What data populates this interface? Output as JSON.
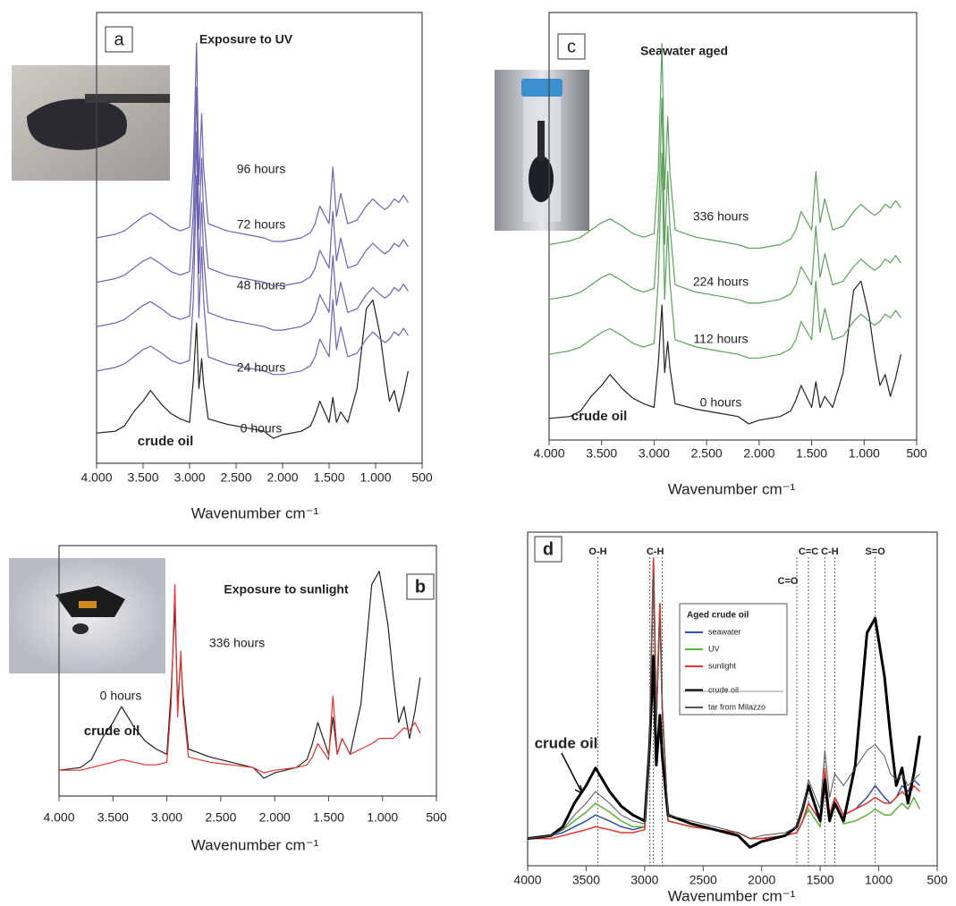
{
  "chart_data": [
    {
      "type": "line",
      "panel_label": "a",
      "title": "Exposure to UV",
      "xlabel": "Wavenumber cm⁻¹",
      "xlim": [
        4000,
        500
      ],
      "ylim": [
        0,
        240
      ],
      "xticks": [
        {
          "value": 4000,
          "label": "4.000"
        },
        {
          "value": 3500,
          "label": "3.500"
        },
        {
          "value": 3000,
          "label": "3.000"
        },
        {
          "value": 2500,
          "label": "2.500"
        },
        {
          "value": 2000,
          "label": "2.000"
        },
        {
          "value": 1500,
          "label": "1.500"
        },
        {
          "value": 1000,
          "label": "1.000"
        },
        500
      ],
      "x": [
        4000,
        3800,
        3700,
        3600,
        3500,
        3420,
        3300,
        3200,
        3100,
        3000,
        2960,
        2925,
        2900,
        2870,
        2850,
        2800,
        2600,
        2400,
        2200,
        2100,
        2000,
        1800,
        1700,
        1650,
        1600,
        1500,
        1460,
        1420,
        1375,
        1300,
        1200,
        1100,
        1030,
        950,
        900,
        850,
        800,
        750,
        700,
        650
      ],
      "annotations": [
        {
          "text": "crude oil"
        }
      ],
      "series": [
        {
          "name": "0 hours",
          "color": "#222222",
          "values": [
            10,
            11,
            14,
            22,
            28,
            34,
            26,
            21,
            18,
            16,
            40,
            72,
            35,
            52,
            38,
            18,
            15,
            13,
            11,
            7,
            9,
            11,
            14,
            20,
            28,
            16,
            30,
            16,
            22,
            16,
            35,
            80,
            85,
            65,
            45,
            28,
            34,
            22,
            32,
            45
          ]
        },
        {
          "name": "24 hours",
          "color": "#6a64b0",
          "values": [
            45,
            47,
            49,
            53,
            57,
            59,
            55,
            51,
            49,
            51,
            85,
            155,
            75,
            115,
            85,
            53,
            49,
            47,
            45,
            43,
            43,
            45,
            48,
            53,
            63,
            53,
            85,
            57,
            70,
            53,
            55,
            63,
            67,
            63,
            61,
            63,
            67,
            65,
            69,
            65
          ]
        },
        {
          "name": "48 hours",
          "color": "#6a64b0",
          "values": [
            70,
            72,
            74,
            78,
            82,
            84,
            80,
            76,
            74,
            76,
            110,
            180,
            100,
            140,
            110,
            78,
            74,
            72,
            70,
            68,
            68,
            70,
            73,
            78,
            88,
            78,
            110,
            82,
            95,
            78,
            80,
            88,
            92,
            88,
            86,
            88,
            92,
            90,
            94,
            90
          ]
        },
        {
          "name": "72 hours",
          "color": "#6a64b0",
          "values": [
            95,
            97,
            99,
            103,
            107,
            109,
            105,
            101,
            99,
            101,
            135,
            205,
            125,
            165,
            135,
            103,
            99,
            97,
            95,
            93,
            93,
            95,
            98,
            103,
            113,
            103,
            135,
            107,
            120,
            103,
            105,
            113,
            117,
            113,
            111,
            113,
            117,
            115,
            119,
            115
          ]
        },
        {
          "name": "96 hours",
          "color": "#6a64b0",
          "values": [
            120,
            122,
            124,
            128,
            132,
            134,
            130,
            126,
            124,
            126,
            160,
            230,
            150,
            190,
            160,
            128,
            124,
            122,
            120,
            118,
            118,
            120,
            123,
            128,
            138,
            128,
            160,
            132,
            145,
            128,
            130,
            138,
            142,
            138,
            136,
            138,
            142,
            140,
            144,
            140
          ]
        }
      ]
    },
    {
      "type": "line",
      "panel_label": "b",
      "title": "Exposure to sunlight",
      "xlabel": "Wavenumber cm⁻¹",
      "xlim": [
        4000,
        500
      ],
      "ylim": [
        -5,
        80
      ],
      "xticks": [
        {
          "value": 4000,
          "label": "4.000"
        },
        {
          "value": 3500,
          "label": "3.500"
        },
        {
          "value": 3000,
          "label": "3.000"
        },
        {
          "value": 2500,
          "label": "2.500"
        },
        {
          "value": 2000,
          "label": "2.000"
        },
        {
          "value": 1500,
          "label": "1.500"
        },
        {
          "value": 1000,
          "label": "1.000"
        },
        500
      ],
      "x": [
        4000,
        3800,
        3700,
        3600,
        3500,
        3420,
        3300,
        3200,
        3100,
        3000,
        2960,
        2925,
        2900,
        2870,
        2850,
        2800,
        2600,
        2400,
        2200,
        2100,
        2000,
        1800,
        1700,
        1650,
        1600,
        1500,
        1460,
        1420,
        1375,
        1300,
        1200,
        1100,
        1030,
        950,
        900,
        850,
        800,
        750,
        700,
        650
      ],
      "annotations": [
        {
          "text": "crude oil"
        }
      ],
      "series": [
        {
          "name": "0 hours",
          "color": "#222222",
          "values": [
            0,
            1,
            4,
            12,
            18,
            24,
            16,
            11,
            8,
            6,
            30,
            62,
            25,
            42,
            28,
            8,
            5,
            3,
            1,
            -3,
            -1,
            1,
            4,
            10,
            18,
            6,
            20,
            6,
            12,
            6,
            25,
            70,
            75,
            55,
            35,
            18,
            24,
            12,
            22,
            35
          ]
        },
        {
          "name": "336 hours",
          "color": "#e8322a",
          "values": [
            0,
            0,
            1,
            2,
            3,
            4,
            3,
            2,
            2,
            3,
            25,
            70,
            20,
            45,
            25,
            5,
            3,
            2,
            1,
            -1,
            0,
            1,
            2,
            5,
            10,
            4,
            28,
            6,
            12,
            6,
            8,
            10,
            12,
            12,
            12,
            14,
            16,
            15,
            18,
            14
          ]
        }
      ]
    },
    {
      "type": "line",
      "panel_label": "c",
      "title": "Seawater aged",
      "xlabel": "Wavenumber cm⁻¹",
      "xlim": [
        4000,
        500
      ],
      "ylim": [
        0,
        220
      ],
      "xticks": [
        {
          "value": 4000,
          "label": "4.000"
        },
        {
          "value": 3500,
          "label": "3.500"
        },
        {
          "value": 3000,
          "label": "3.000"
        },
        {
          "value": 2500,
          "label": "2.500"
        },
        {
          "value": 2000,
          "label": "2.000"
        },
        {
          "value": 1500,
          "label": "1.500"
        },
        {
          "value": 1000,
          "label": "1.000"
        },
        500
      ],
      "x": [
        4000,
        3800,
        3700,
        3600,
        3500,
        3420,
        3300,
        3200,
        3100,
        3000,
        2960,
        2925,
        2900,
        2870,
        2850,
        2800,
        2600,
        2400,
        2200,
        2100,
        2000,
        1800,
        1700,
        1650,
        1600,
        1500,
        1460,
        1420,
        1375,
        1300,
        1200,
        1100,
        1030,
        950,
        900,
        850,
        800,
        750,
        700,
        650
      ],
      "annotations": [
        {
          "text": "crude oil"
        }
      ],
      "series": [
        {
          "name": "0 hours",
          "color": "#222222",
          "values": [
            5,
            6,
            9,
            17,
            23,
            29,
            21,
            16,
            13,
            11,
            35,
            67,
            30,
            47,
            33,
            13,
            10,
            8,
            6,
            2,
            4,
            6,
            9,
            15,
            23,
            11,
            25,
            11,
            17,
            11,
            30,
            75,
            80,
            60,
            40,
            23,
            29,
            17,
            27,
            40
          ]
        },
        {
          "name": "112 hours",
          "color": "#5aa25a",
          "values": [
            40,
            42,
            44,
            48,
            52,
            54,
            50,
            46,
            44,
            46,
            80,
            150,
            70,
            110,
            80,
            48,
            44,
            42,
            40,
            38,
            38,
            40,
            43,
            48,
            58,
            48,
            80,
            52,
            65,
            48,
            50,
            58,
            62,
            58,
            56,
            58,
            62,
            60,
            64,
            60
          ]
        },
        {
          "name": "224 hours",
          "color": "#5aa25a",
          "values": [
            70,
            72,
            74,
            78,
            82,
            84,
            80,
            76,
            74,
            76,
            110,
            180,
            100,
            140,
            110,
            78,
            74,
            72,
            70,
            68,
            68,
            70,
            73,
            78,
            88,
            78,
            110,
            82,
            95,
            78,
            80,
            88,
            92,
            88,
            86,
            88,
            92,
            90,
            94,
            90
          ]
        },
        {
          "name": "336 hours",
          "color": "#5aa25a",
          "values": [
            100,
            102,
            104,
            108,
            112,
            114,
            110,
            106,
            104,
            106,
            140,
            210,
            130,
            170,
            140,
            108,
            104,
            102,
            100,
            98,
            98,
            100,
            103,
            108,
            118,
            108,
            140,
            112,
            125,
            108,
            110,
            118,
            122,
            118,
            116,
            118,
            122,
            120,
            124,
            120
          ]
        }
      ]
    },
    {
      "type": "line",
      "panel_label": "d",
      "xlabel": "Wavenumber cm⁻¹",
      "legend_title": "Aged crude oil",
      "xlim": [
        4000,
        500
      ],
      "ylim": [
        -5,
        100
      ],
      "xticks": [
        4000,
        3500,
        3000,
        2500,
        2000,
        1500,
        1000,
        500
      ],
      "x": [
        4000,
        3800,
        3700,
        3600,
        3500,
        3420,
        3300,
        3200,
        3100,
        3000,
        2960,
        2925,
        2900,
        2870,
        2850,
        2800,
        2600,
        2400,
        2200,
        2100,
        2000,
        1800,
        1700,
        1650,
        1600,
        1500,
        1460,
        1420,
        1375,
        1300,
        1200,
        1100,
        1030,
        950,
        900,
        850,
        800,
        750,
        700,
        650
      ],
      "annotations": [
        {
          "text": "crude oil"
        }
      ],
      "markers": [
        {
          "label": "O-H",
          "x": [
            3400
          ]
        },
        {
          "label": "C-H",
          "x": [
            2955,
            2925,
            2850
          ]
        },
        {
          "label": "C=O",
          "x": [
            1700
          ]
        },
        {
          "label": "C=C",
          "x": [
            1600
          ]
        },
        {
          "label": "C-H",
          "x": [
            1460,
            1375
          ]
        },
        {
          "label": "S=O",
          "x": [
            1030
          ]
        }
      ],
      "series": [
        {
          "name": "seawater",
          "color": "#2e4fa8",
          "line_width": 1.5,
          "values": [
            0,
            1,
            2,
            4,
            6,
            8,
            6,
            4,
            3,
            4,
            30,
            95,
            40,
            80,
            45,
            6,
            4,
            3,
            2,
            0,
            0,
            1,
            2,
            6,
            12,
            6,
            22,
            8,
            14,
            8,
            10,
            14,
            18,
            14,
            12,
            14,
            18,
            16,
            20,
            18
          ]
        },
        {
          "name": "UV",
          "color": "#5db33a",
          "line_width": 1.5,
          "values": [
            0,
            1,
            3,
            6,
            9,
            12,
            9,
            6,
            4,
            4,
            30,
            95,
            40,
            80,
            45,
            6,
            4,
            3,
            2,
            0,
            0,
            1,
            2,
            6,
            10,
            4,
            20,
            6,
            12,
            5,
            6,
            8,
            10,
            8,
            8,
            10,
            12,
            10,
            14,
            10
          ]
        },
        {
          "name": "sunlight",
          "color": "#e8322a",
          "line_width": 1.5,
          "values": [
            0,
            0,
            1,
            2,
            3,
            4,
            3,
            2,
            2,
            3,
            30,
            95,
            40,
            80,
            45,
            6,
            4,
            3,
            2,
            0,
            0,
            1,
            2,
            6,
            12,
            6,
            24,
            8,
            14,
            8,
            10,
            12,
            14,
            12,
            12,
            14,
            16,
            14,
            18,
            16
          ]
        },
        {
          "name": "crude oil",
          "color": "#000000",
          "line_width": 3,
          "values": [
            0,
            1,
            4,
            12,
            18,
            24,
            16,
            11,
            8,
            6,
            30,
            62,
            25,
            42,
            28,
            8,
            5,
            3,
            1,
            -3,
            -1,
            1,
            4,
            10,
            18,
            6,
            20,
            6,
            12,
            6,
            25,
            70,
            75,
            55,
            35,
            18,
            24,
            12,
            22,
            35
          ]
        },
        {
          "name": "tar from Milazzo",
          "color": "#555555",
          "line_width": 1,
          "values": [
            0,
            1,
            3,
            8,
            12,
            16,
            12,
            8,
            6,
            5,
            30,
            90,
            38,
            75,
            42,
            8,
            6,
            4,
            2,
            0,
            1,
            2,
            4,
            10,
            20,
            10,
            30,
            14,
            22,
            18,
            24,
            30,
            32,
            28,
            22,
            20,
            22,
            18,
            20,
            22
          ]
        }
      ]
    }
  ]
}
